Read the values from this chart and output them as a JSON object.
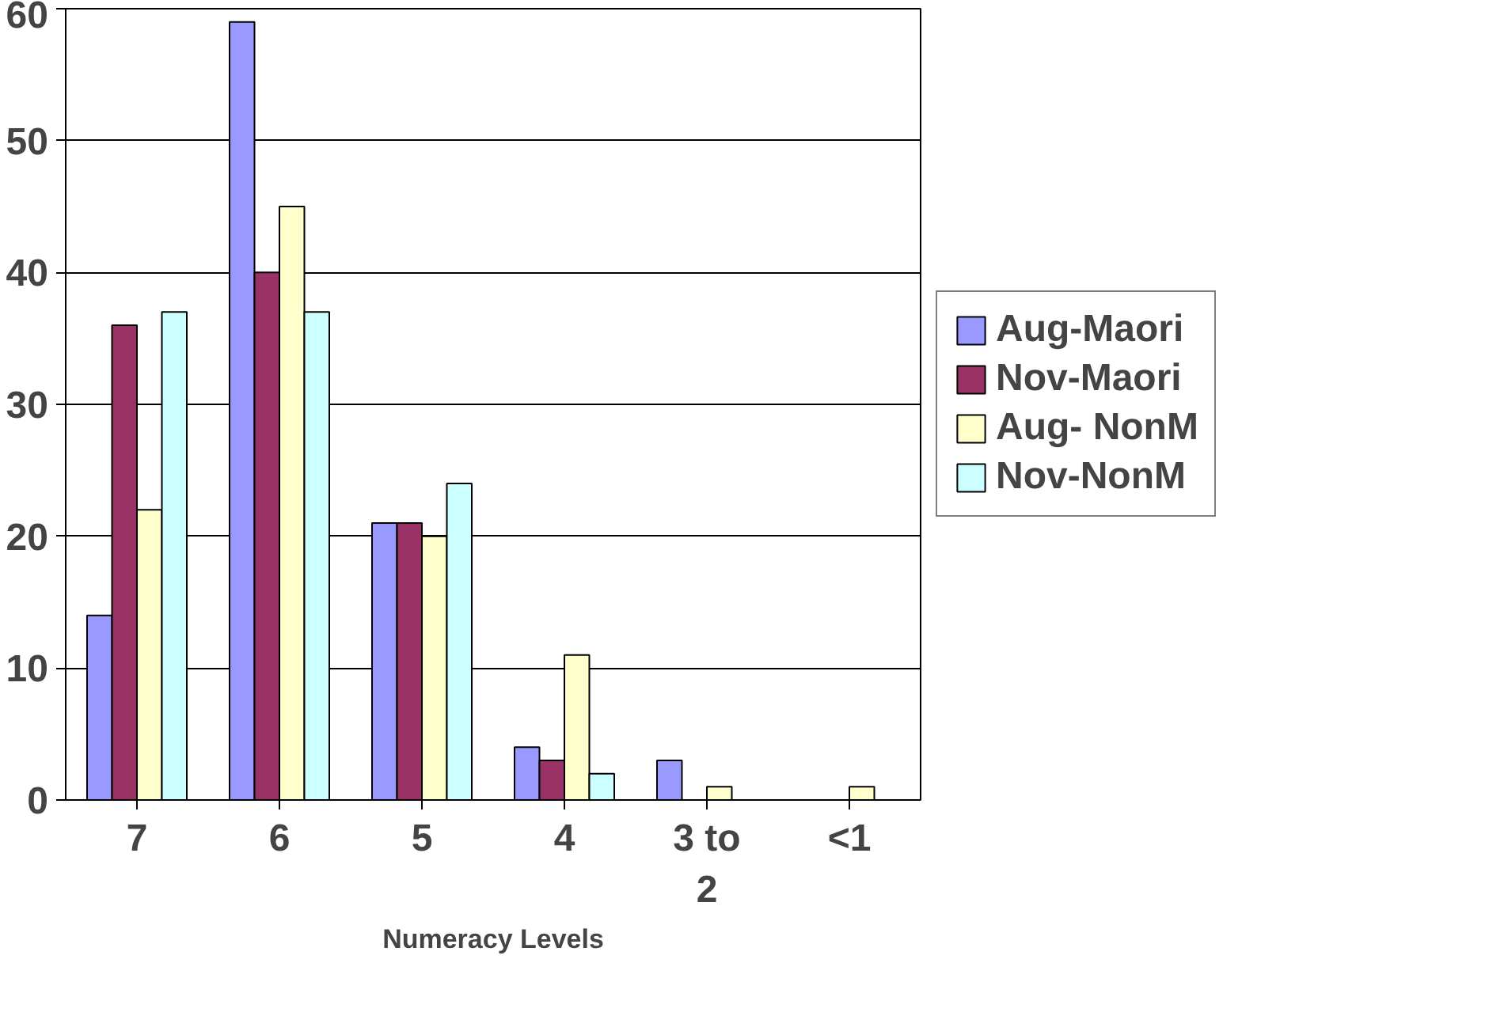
{
  "chart_data": {
    "type": "bar",
    "xlabel": "Numeracy Levels",
    "categories": [
      "7",
      "6",
      "5",
      "4",
      "3 to\n2",
      "<1"
    ],
    "series": [
      {
        "name": "Aug-Maori",
        "color": "#9999ff",
        "values": [
          14,
          59,
          21,
          4,
          3,
          0
        ]
      },
      {
        "name": "Nov-Maori",
        "color": "#993366",
        "values": [
          36,
          40,
          21,
          3,
          0,
          0
        ]
      },
      {
        "name": "Aug- NonM",
        "color": "#ffffcc",
        "values": [
          22,
          45,
          20,
          11,
          1,
          1
        ]
      },
      {
        "name": "Nov-NonM",
        "color": "#ccffff",
        "values": [
          37,
          37,
          24,
          2,
          0,
          0
        ]
      }
    ],
    "ylim": [
      0,
      60
    ],
    "yticks": [
      0,
      10,
      20,
      30,
      40,
      50,
      60
    ],
    "grid": "y",
    "legend": "right"
  }
}
